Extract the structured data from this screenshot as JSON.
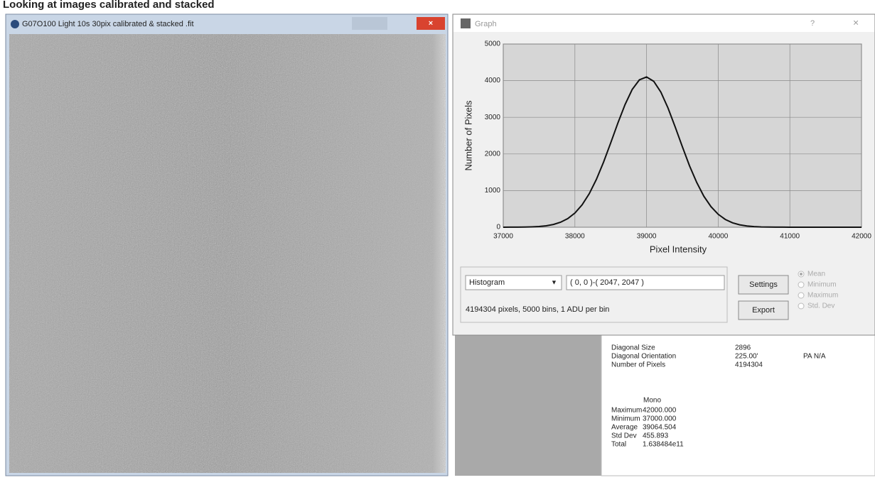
{
  "page_title": "Looking at images calibrated and stacked",
  "image_window": {
    "title": "G07O100 Light 10s 30pix calibrated & stacked .fit"
  },
  "graph_window": {
    "title": "Graph",
    "help": "?",
    "close": "×",
    "chart_data": {
      "type": "line",
      "x_label": "Pixel Intensity",
      "y_label": "Number of Pixels",
      "color": "#111111",
      "grid": true,
      "x": [
        37000,
        37100,
        37200,
        37300,
        37400,
        37500,
        37600,
        37700,
        37800,
        37900,
        38000,
        38100,
        38200,
        38300,
        38400,
        38500,
        38600,
        38700,
        38800,
        38900,
        39000,
        39100,
        39200,
        39300,
        39400,
        39500,
        39600,
        39700,
        39800,
        39900,
        40000,
        40100,
        40200,
        40300,
        40400,
        40500,
        40600,
        40700,
        40800,
        40900,
        41000,
        42000
      ],
      "values": [
        0,
        1,
        2,
        4,
        9,
        20,
        39,
        75,
        136,
        235,
        388,
        610,
        914,
        1305,
        1775,
        2302,
        2844,
        3349,
        3759,
        4021,
        4100,
        3983,
        3687,
        3254,
        2737,
        2195,
        1675,
        1220,
        847,
        560,
        353,
        212,
        121,
        66,
        34,
        17,
        8,
        4,
        2,
        1,
        0,
        0
      ],
      "xlim": [
        37000,
        42000
      ],
      "ylim": [
        0,
        5000
      ],
      "xticks": [
        37000,
        38000,
        39000,
        40000,
        41000,
        42000
      ],
      "yticks": [
        0,
        1000,
        2000,
        3000,
        4000,
        5000
      ]
    },
    "controls": {
      "mode": "Histogram",
      "region": "( 0, 0 )-( 2047, 2047 )",
      "settings": "Settings",
      "export": "Export",
      "options": [
        "Mean",
        "Minimum",
        "Maximum",
        "Std. Dev"
      ],
      "status": "4194304 pixels, 5000 bins, 1 ADU per bin"
    }
  },
  "statistics": {
    "rows": [
      {
        "label": "Diagonal Size",
        "value": "2896"
      },
      {
        "label": "Diagonal Orientation",
        "value": "225.00'",
        "extra": "PA  N/A"
      },
      {
        "label": "Number of Pixels",
        "value": "4194304"
      }
    ],
    "column_header": "Mono",
    "values": [
      {
        "label": "Maximum",
        "value": "42000.000"
      },
      {
        "label": "Minimum",
        "value": "37000.000"
      },
      {
        "label": "Average",
        "value": "39064.504"
      },
      {
        "label": "Std Dev",
        "value": "455.893"
      },
      {
        "label": "Total",
        "value": "1.638484e11"
      }
    ]
  }
}
